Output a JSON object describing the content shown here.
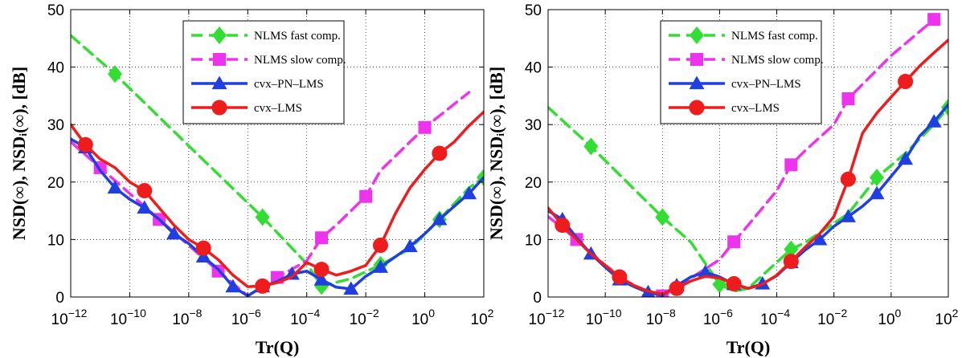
{
  "chart_data": [
    {
      "type": "line",
      "xscale": "log",
      "xlabel": "Tr(Q)",
      "ylabel": "NSD(∞), NSDᵢ(∞), [dB]",
      "xlim": [
        1e-12,
        100.0
      ],
      "ylim": [
        0,
        50
      ],
      "grid": true,
      "legend_position": "top-center",
      "x_ticks": [
        1e-12,
        1e-10,
        1e-08,
        1e-06,
        0.0001,
        0.01,
        1,
        100
      ],
      "x_tick_exponents": [
        "−12",
        "−10",
        "−8",
        "−6",
        "−4",
        "−2",
        "0",
        "2"
      ],
      "y_ticks": [
        0,
        10,
        20,
        30,
        40,
        50
      ],
      "series": [
        {
          "name": "NLMS fast comp.",
          "color": "#33dd33",
          "linestyle": "dashed",
          "marker": "diamond",
          "marker_every": 2,
          "x": [
            1e-12,
            3.16e-11,
            1e-08,
            3.16e-06,
            0.0001,
            0.000316,
            0.00316,
            0.0316,
            0.316,
            3.16,
            31.6,
            100
          ],
          "y": [
            45.5,
            38.8,
            26.3,
            13.9,
            5.8,
            1.9,
            3.2,
            5.6,
            8.4,
            13.5,
            19.0,
            20.8
          ]
        },
        {
          "name": "NLMS slow comp.",
          "color": "#ee33ee",
          "linestyle": "dashed",
          "marker": "square",
          "marker_every": 2,
          "x": [
            1e-12,
            1e-11,
            1e-10,
            1e-09,
            1e-08,
            1e-07,
            1e-06,
            1e-05,
            0.0001,
            0.000316,
            0.001,
            0.01,
            0.0316,
            1,
            31.6
          ],
          "y": [
            27.0,
            22.5,
            18.0,
            13.5,
            9.0,
            4.5,
            0.2,
            3.4,
            6.3,
            10.3,
            12.5,
            17.5,
            22.0,
            29.5,
            35.6
          ]
        },
        {
          "name": "cvx–PN–LMS",
          "color": "#1f3fe0",
          "linestyle": "solid",
          "marker": "triangle",
          "marker_every": 2,
          "x": [
            1e-12,
            3.16e-12,
            1e-11,
            3.16e-11,
            1e-10,
            3.16e-10,
            1e-09,
            3.16e-09,
            1e-08,
            3.16e-08,
            1e-07,
            3.16e-07,
            1e-06,
            3.16e-06,
            1e-05,
            3.16e-05,
            0.0001,
            0.000316,
            0.001,
            0.00316,
            0.01,
            0.0316,
            0.1,
            0.316,
            1,
            3.16,
            10,
            31.6,
            100
          ],
          "y": [
            27.5,
            26.0,
            22.0,
            19.0,
            17.0,
            15.5,
            13.5,
            11.0,
            9.3,
            7.0,
            4.8,
            1.8,
            0.2,
            1.8,
            2.7,
            4.0,
            4.5,
            3.0,
            1.7,
            1.4,
            3.6,
            5.2,
            7.0,
            8.8,
            11.0,
            13.5,
            15.8,
            18.0,
            20.8
          ]
        },
        {
          "name": "cvx–LMS",
          "color": "#ee1c1c",
          "linestyle": "solid",
          "marker": "circle",
          "marker_every": 4,
          "x": [
            1e-12,
            3.16e-12,
            1e-11,
            3.16e-11,
            1e-10,
            3.16e-10,
            1e-09,
            3.16e-09,
            1e-08,
            3.16e-08,
            1e-07,
            3.16e-07,
            1e-06,
            3.16e-06,
            1e-05,
            3.16e-05,
            0.0001,
            0.000316,
            0.001,
            0.00316,
            0.01,
            0.0316,
            0.1,
            0.316,
            1,
            3.16,
            10,
            31.6,
            100
          ],
          "y": [
            30.0,
            26.5,
            24.0,
            22.5,
            20.0,
            18.5,
            15.5,
            12.5,
            10.0,
            8.5,
            6.5,
            3.8,
            1.8,
            1.9,
            2.5,
            3.5,
            6.0,
            4.8,
            3.8,
            4.5,
            5.5,
            9.0,
            14.5,
            19.0,
            22.2,
            25.0,
            27.0,
            29.8,
            32.2
          ]
        }
      ]
    },
    {
      "type": "line",
      "xscale": "log",
      "xlabel": "Tr(Q)",
      "ylabel": "NSD(∞), NSDᵢ(∞), [dB]",
      "xlim": [
        1e-12,
        100.0
      ],
      "ylim": [
        0,
        50
      ],
      "grid": true,
      "legend_position": "top-center",
      "x_ticks": [
        1e-12,
        1e-10,
        1e-08,
        1e-06,
        0.0001,
        0.01,
        1,
        100
      ],
      "x_tick_exponents": [
        "−12",
        "−10",
        "−8",
        "−6",
        "−4",
        "−2",
        "0",
        "2"
      ],
      "y_ticks": [
        0,
        10,
        20,
        30,
        40,
        50
      ],
      "series": [
        {
          "name": "NLMS fast comp.",
          "color": "#33dd33",
          "linestyle": "dashed",
          "marker": "diamond",
          "marker_every": 2,
          "x": [
            1e-12,
            3.16e-11,
            1e-08,
            1e-07,
            1e-06,
            3.16e-06,
            1e-05,
            0.000316,
            0.001,
            0.0316,
            0.316,
            3.16,
            31.6,
            100
          ],
          "y": [
            33.0,
            26.2,
            13.9,
            9.5,
            2.2,
            1.0,
            1.5,
            8.3,
            9.5,
            14.5,
            20.8,
            25.0,
            30.0,
            33.0
          ],
          "marker_indices": [
            1,
            2,
            4,
            7,
            10,
            13
          ]
        },
        {
          "name": "NLMS slow comp.",
          "color": "#ee33ee",
          "linestyle": "dashed",
          "marker": "square",
          "marker_every": 2,
          "x": [
            1e-12,
            1e-11,
            1e-10,
            1e-09,
            1e-08,
            1e-07,
            1e-06,
            3.16e-06,
            1e-05,
            0.0001,
            0.000316,
            0.001,
            0.01,
            0.0316,
            0.1,
            1,
            31.6
          ],
          "y": [
            14.0,
            10.0,
            5.5,
            2.0,
            0.2,
            3.3,
            6.5,
            9.6,
            12.5,
            18.5,
            23.0,
            25.5,
            30.0,
            34.5,
            37.0,
            42.0,
            48.3
          ],
          "marker_indices": [
            1,
            4,
            7,
            10,
            13,
            16
          ]
        },
        {
          "name": "cvx–PN–LMS",
          "color": "#1f3fe0",
          "linestyle": "solid",
          "marker": "triangle",
          "marker_every": 2,
          "x": [
            1e-12,
            3.16e-12,
            1e-11,
            3.16e-11,
            1e-10,
            3.16e-10,
            1e-09,
            3.16e-09,
            1e-08,
            3.16e-08,
            1e-07,
            3.16e-07,
            1e-06,
            3.16e-06,
            1e-05,
            3.16e-05,
            0.0001,
            0.000316,
            0.001,
            0.00316,
            0.01,
            0.0316,
            0.1,
            0.316,
            1,
            3.16,
            10,
            31.6,
            100
          ],
          "y": [
            15.0,
            13.5,
            10.3,
            7.5,
            5.2,
            3.0,
            1.8,
            0.8,
            0.3,
            2.0,
            3.5,
            4.3,
            3.5,
            2.2,
            1.5,
            2.3,
            3.7,
            6.0,
            8.2,
            10.0,
            12.3,
            14.0,
            15.8,
            18.0,
            21.0,
            24.0,
            28.0,
            30.5,
            33.5
          ]
        },
        {
          "name": "cvx–LMS",
          "color": "#ee1c1c",
          "linestyle": "solid",
          "marker": "circle",
          "marker_every": 4,
          "x": [
            1e-12,
            3.16e-12,
            1e-11,
            3.16e-11,
            1e-10,
            3.16e-10,
            1e-09,
            3.16e-09,
            1e-08,
            3.16e-08,
            1e-07,
            3.16e-07,
            1e-06,
            3.16e-06,
            1e-05,
            3.16e-05,
            0.0001,
            0.000316,
            0.001,
            0.00316,
            0.01,
            0.0316,
            0.1,
            0.316,
            1,
            3.16,
            10,
            31.6,
            100
          ],
          "y": [
            15.5,
            12.5,
            10.0,
            7.5,
            5.5,
            3.5,
            2.0,
            1.0,
            0.5,
            1.5,
            2.8,
            3.6,
            3.3,
            2.3,
            1.5,
            2.2,
            3.8,
            6.2,
            8.7,
            11.0,
            14.0,
            20.5,
            28.5,
            32.0,
            34.8,
            37.5,
            40.2,
            42.5,
            44.7
          ]
        }
      ]
    }
  ]
}
